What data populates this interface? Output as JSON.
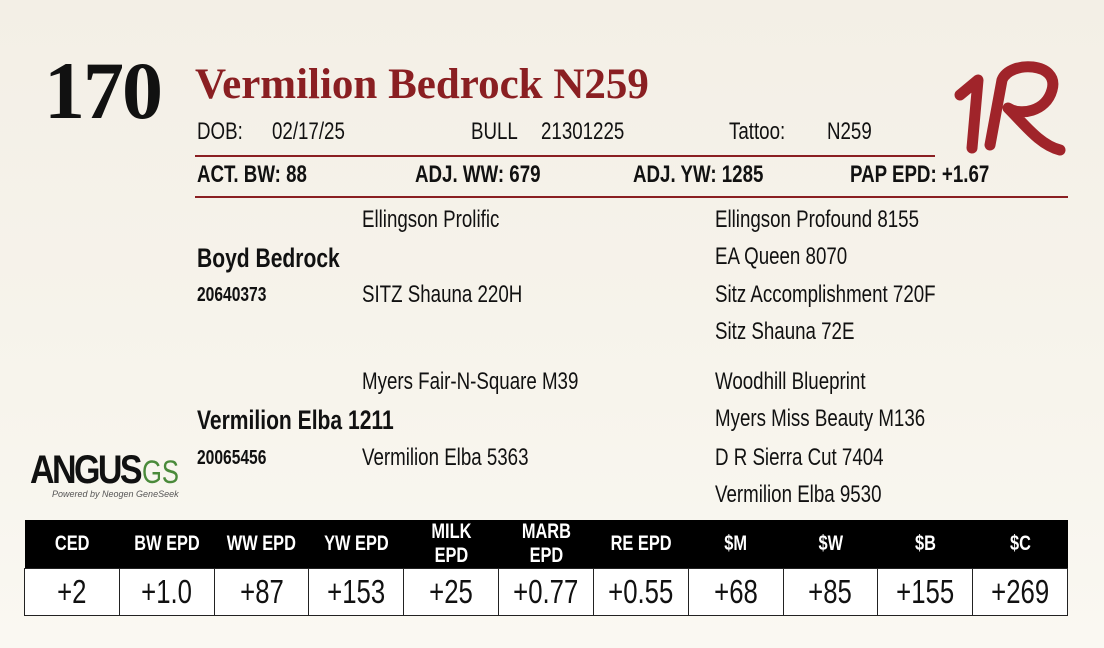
{
  "lot_number": "170",
  "title": "Vermilion Bedrock N259",
  "details": {
    "dob_label": "DOB:",
    "dob": "02/17/25",
    "sex": "BULL",
    "registration": "21301225",
    "tattoo_label": "Tattoo:",
    "tattoo": "N259"
  },
  "measures": [
    {
      "label": "ACT. BW:",
      "value": "88"
    },
    {
      "label": "ADJ. WW:",
      "value": "679"
    },
    {
      "label": "ADJ. YW:",
      "value": "1285"
    },
    {
      "label": "PAP EPD:",
      "value": "+1.67"
    }
  ],
  "pedigree": {
    "sire": {
      "name": "Boyd Bedrock",
      "registration": "20640373",
      "sire": "Ellingson Prolific",
      "dam": "SITZ Shauna 220H",
      "grandparents": [
        "Ellingson Profound 8155",
        "EA Queen 8070",
        "Sitz Accomplishment 720F",
        "Sitz Shauna 72E"
      ]
    },
    "dam": {
      "name": "Vermilion Elba 1211",
      "registration": "20065456",
      "sire": "Myers Fair-N-Square M39",
      "dam": "Vermilion Elba 5363",
      "grandparents": [
        "Woodhill Blueprint",
        "Myers Miss Beauty M136",
        "D R Sierra Cut 7404",
        "Vermilion Elba 9530"
      ]
    }
  },
  "logo": {
    "name": "ANGUS",
    "suffix": "GS",
    "tagline": "Powered by Neogen GeneSeek"
  },
  "epd_table": {
    "headers": [
      "CED",
      "BW EPD",
      "WW EPD",
      "YW EPD",
      "MILK EPD",
      "MARB EPD",
      "RE EPD",
      "$M",
      "$W",
      "$B",
      "$C"
    ],
    "values": [
      "+2",
      "+1.0",
      "+87",
      "+153",
      "+25",
      "+0.77",
      "+0.55",
      "+68",
      "+85",
      "+155",
      "+269"
    ]
  }
}
